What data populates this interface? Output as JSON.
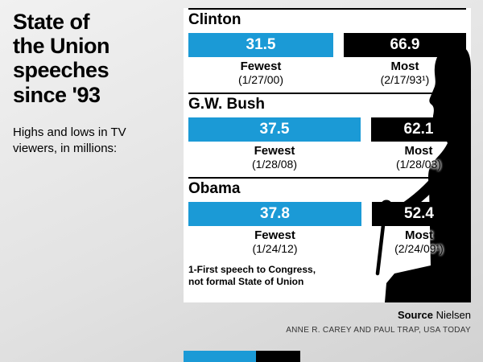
{
  "infographic": {
    "title_lines": [
      "State of",
      "the Union",
      "speeches",
      "since '93"
    ],
    "subtitle": "Highs and lows in TV viewers, in millions:",
    "footnote_line1": "1-First speech to Congress,",
    "footnote_line2": "not formal State of Union",
    "source_label": "Source",
    "source_value": "Nielsen",
    "credit": "ANNE R. CAREY AND PAUL TRAP, USA TODAY"
  },
  "groups": [
    {
      "name": "Clinton",
      "fewest_value": "31.5",
      "fewest_label": "Fewest",
      "fewest_date": "(1/27/00)",
      "most_value": "66.9",
      "most_label": "Most",
      "most_date": "(2/17/93¹)"
    },
    {
      "name": "G.W. Bush",
      "fewest_value": "37.5",
      "fewest_label": "Fewest",
      "fewest_date": "(1/28/08)",
      "most_value": "62.1",
      "most_label": "Most",
      "most_date": "(1/28/03)"
    },
    {
      "name": "Obama",
      "fewest_value": "37.8",
      "fewest_label": "Fewest",
      "fewest_date": "(1/24/12)",
      "most_value": "52.4",
      "most_label": "Most",
      "most_date": "(2/24/09¹)"
    }
  ],
  "chart_data": {
    "type": "bar",
    "orientation": "horizontal",
    "title": "State of the Union speeches since '93",
    "subtitle": "Highs and lows in TV viewers, in millions",
    "unit": "millions of TV viewers",
    "categories": [
      "Clinton",
      "G.W. Bush",
      "Obama"
    ],
    "series": [
      {
        "name": "Fewest",
        "color": "#1b9ad6",
        "values": [
          31.5,
          37.5,
          37.8
        ],
        "dates": [
          "1/27/00",
          "1/28/08",
          "1/24/12"
        ]
      },
      {
        "name": "Most",
        "color": "#000000",
        "values": [
          66.9,
          62.1,
          52.4
        ],
        "dates": [
          "2/17/93¹",
          "1/28/03",
          "2/24/09¹"
        ]
      }
    ],
    "footnote": "1-First speech to Congress, not formal State of Union",
    "source": "Nielsen",
    "colors": {
      "fewest_bar": "#1b9ad6",
      "most_bar": "#000000",
      "background": "#ffffff"
    }
  }
}
